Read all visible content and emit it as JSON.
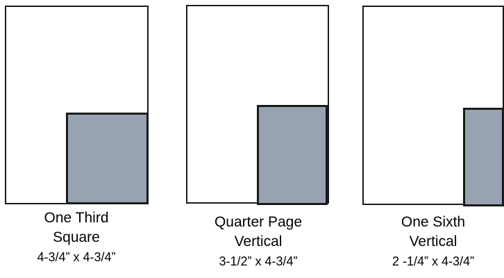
{
  "ad_fill_color": "#97a3b0",
  "outline_color": "#1a1a1a",
  "layouts": [
    {
      "title_line1": "One Third",
      "title_line2": "Square",
      "dimensions": "4-3/4” x 4-3/4”"
    },
    {
      "title_line1": "Quarter Page",
      "title_line2": "Vertical",
      "dimensions": "3-1/2” x 4-3/4”"
    },
    {
      "title_line1": "One Sixth",
      "title_line2": "Vertical",
      "dimensions": "2 -1/4” x 4-3/4”"
    }
  ]
}
